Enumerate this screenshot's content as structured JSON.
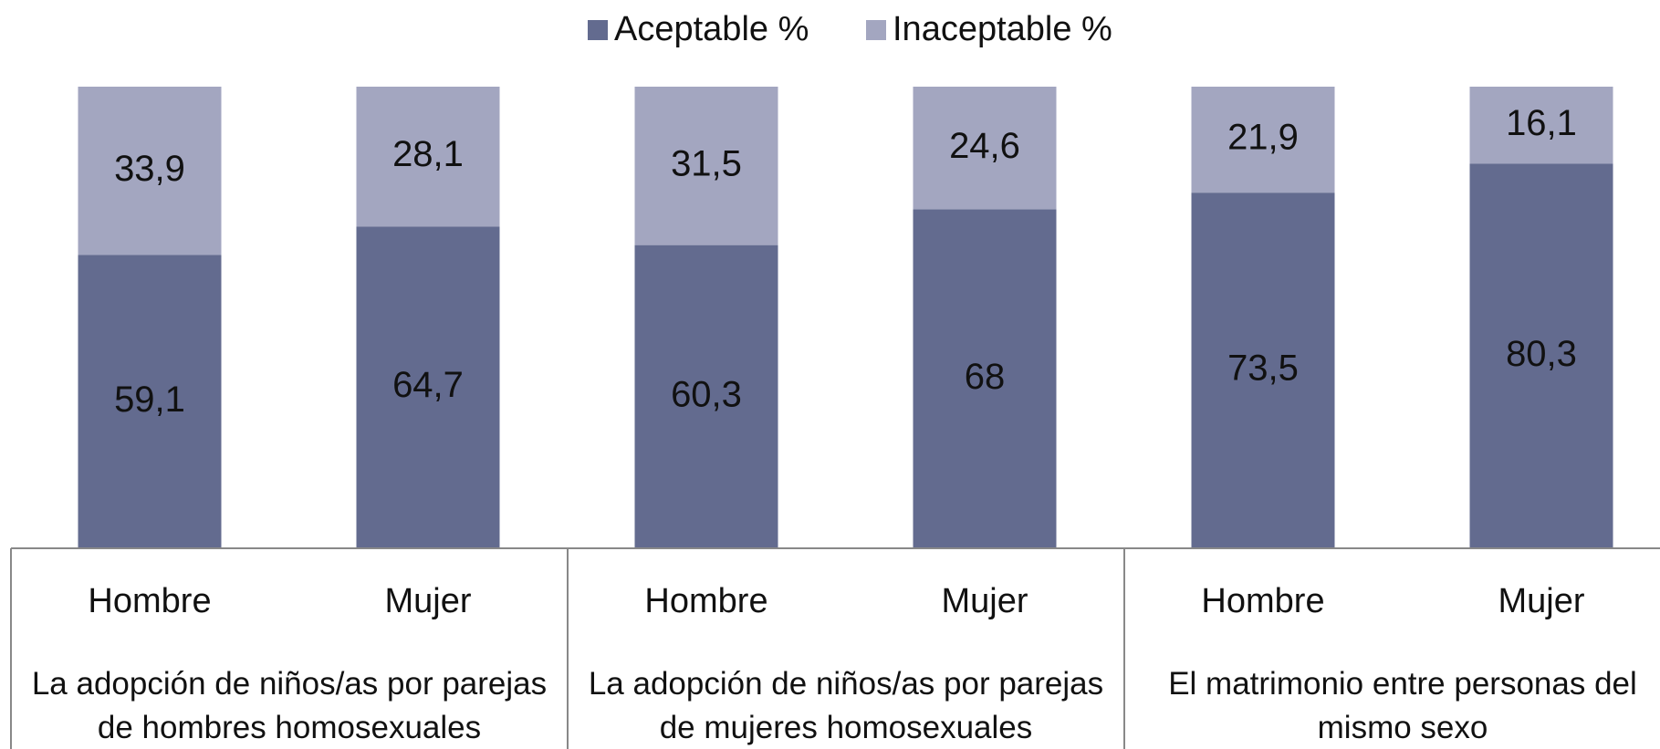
{
  "chart_data": {
    "type": "bar",
    "percent_stacked": true,
    "categories": [
      "Hombre",
      "Mujer",
      "Hombre",
      "Mujer",
      "Hombre",
      "Mujer"
    ],
    "groups": [
      "La adopción de niños/as por parejas de hombres homosexuales",
      "La adopción de niños/as por parejas de mujeres homosexuales",
      "El matrimonio entre personas del mismo sexo"
    ],
    "series": [
      {
        "name": "Aceptable %",
        "color": "#636b8f",
        "values": [
          59.1,
          64.7,
          60.3,
          68,
          73.5,
          80.3
        ],
        "value_labels": [
          "59,1",
          "64,7",
          "60,3",
          "68",
          "73,5",
          "80,3"
        ]
      },
      {
        "name": "Inaceptable %",
        "color": "#a3a6c0",
        "values": [
          33.9,
          28.1,
          31.5,
          24.6,
          21.9,
          16.1
        ],
        "value_labels": [
          "33,9",
          "28,1",
          "31,5",
          "24,6",
          "21,9",
          "16,1"
        ]
      }
    ],
    "legend": "top"
  }
}
